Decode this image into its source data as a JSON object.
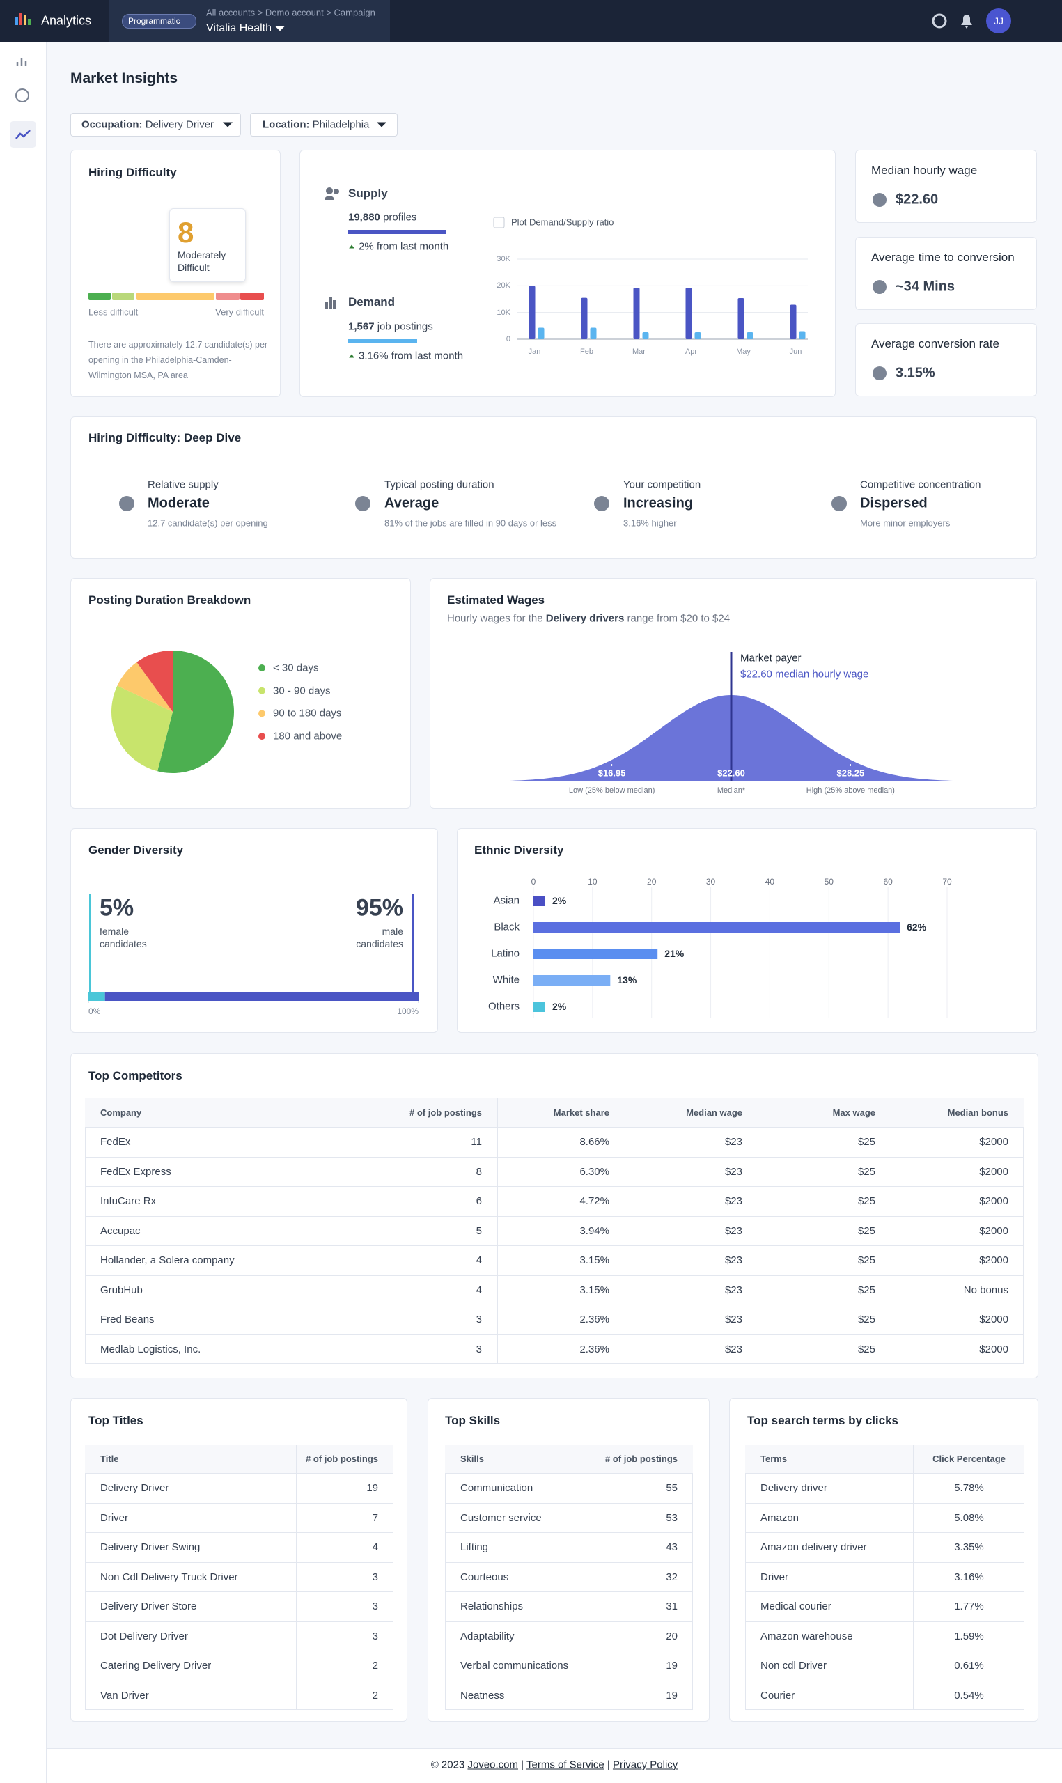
{
  "nav": {
    "brand": "Analytics",
    "badge": "Programmatic",
    "breadcrumb": "All accounts > Demo account > Campaign",
    "account": "Vitalia Health",
    "avatar": "JJ"
  },
  "page_title": "Market Insights",
  "filters": [
    {
      "label": "Occupation:",
      "value": "Delivery Driver"
    },
    {
      "label": "Location:",
      "value": "Philadelphia"
    }
  ],
  "hiring_difficulty": {
    "title": "Hiring Difficulty",
    "score": 8,
    "score_label": "Moderately Difficult",
    "scale_min_label": "Less difficult",
    "scale_max_label": "Very difficult",
    "note": "There are approximately 12.7 candidate(s) per opening in the Philadelphia-Camden-Wilmington MSA, PA area"
  },
  "supply_demand": {
    "supply": {
      "title": "Supply",
      "value": "19,880",
      "unit": "profiles",
      "change": "2% from last month",
      "color": "#4a55c4"
    },
    "demand": {
      "title": "Demand",
      "value": "1,567",
      "unit": "job postings",
      "change": "3.16% from last month",
      "color": "#5ab4ef"
    },
    "checkbox_label": "Plot Demand/Supply ratio",
    "chart": {
      "type": "bar",
      "categories": [
        "Jan",
        "Feb",
        "Mar",
        "Apr",
        "May",
        "Jun"
      ],
      "series": [
        {
          "color": "#4a55c4",
          "values": [
            20000,
            15500,
            19300,
            19300,
            15400,
            12900
          ]
        },
        {
          "color": "#5ab4ef",
          "values": [
            4300,
            4300,
            2600,
            2600,
            2600,
            3000
          ]
        }
      ],
      "ylim": [
        0,
        30000
      ],
      "yticks": [
        0,
        {
          "value": 10000,
          "label": "10K"
        },
        {
          "value": 20000,
          "label": "20K"
        },
        {
          "value": 30000,
          "label": "30K"
        }
      ]
    }
  },
  "metrics": [
    {
      "title": "Median hourly wage",
      "value": "$22.60"
    },
    {
      "title": "Average time to conversion",
      "value": "~34 Mins"
    },
    {
      "title": "Average conversion rate",
      "value": "3.15%"
    }
  ],
  "deep_dive": {
    "title": "Hiring Difficulty: Deep Dive",
    "items": [
      {
        "label": "Relative supply",
        "value": "Moderate",
        "note": "12.7 candidate(s) per opening"
      },
      {
        "label": "Typical posting duration",
        "value": "Average",
        "note": "81% of the jobs are filled in 90 days or less"
      },
      {
        "label": "Your competition",
        "value": "Increasing",
        "note": "3.16% higher"
      },
      {
        "label": "Competitive concentration",
        "value": "Dispersed",
        "note": "More minor employers"
      }
    ]
  },
  "posting_duration": {
    "title": "Posting Duration Breakdown",
    "chart": {
      "type": "pie",
      "categories": [
        "< 30 days",
        "30 - 90 days",
        "90 to 180 days",
        "180 and above"
      ],
      "values": [
        54,
        28,
        8,
        10
      ],
      "colors": [
        "#4caf50",
        "#c8e46c",
        "#fdc96b",
        "#e84e4e"
      ]
    }
  },
  "estimated_wages": {
    "title": "Estimated Wages",
    "subtitle": [
      "Hourly wages for the ",
      "Delivery drivers",
      " range from $20 to $24"
    ],
    "marker_title": "Market payer",
    "marker_label": "$22.60 median hourly wage",
    "chart": {
      "type": "area",
      "color": "#6b74d9",
      "xlim": [
        9.15,
        36.05
      ],
      "xticks": [
        {
          "value": 16.95,
          "label": "$16.95"
        },
        {
          "value": 22.6,
          "label": "$22.60"
        },
        {
          "value": 28.25,
          "label": "$28.25"
        }
      ],
      "tick_captions": [
        "Low (25% below median)",
        "Median*",
        "High (25% above median)"
      ]
    }
  },
  "gender": {
    "title": "Gender Diversity",
    "chart": {
      "type": "stackedbar",
      "categories": [
        "female candidates",
        "male candidates"
      ],
      "values": [
        5,
        95
      ],
      "value_labels": [
        "5%",
        "95%"
      ],
      "colors": [
        "#4ac6d8",
        "#4a55c4"
      ],
      "xlim": [
        0,
        100
      ],
      "xticks": [
        {
          "value": 0,
          "label": "0%"
        },
        {
          "value": 100,
          "label": "100%"
        }
      ]
    }
  },
  "ethnic": {
    "title": "Ethnic Diversity",
    "chart": {
      "type": "barh",
      "categories": [
        "Asian",
        "Black",
        "Latino",
        "White",
        "Others"
      ],
      "values": [
        2,
        62,
        21,
        13,
        2
      ],
      "value_labels": [
        "2%",
        "62%",
        "21%",
        "13%",
        "2%"
      ],
      "colors": [
        "#4a4fc4",
        "#5a6fe0",
        "#5a8ef0",
        "#7aaef5",
        "#4cc4dc"
      ],
      "xlim": [
        0,
        70
      ],
      "xticks": [
        0,
        10,
        20,
        30,
        40,
        50,
        60,
        70
      ],
      "grid": true
    }
  },
  "competitors": {
    "title": "Top Competitors",
    "columns": [
      "Company",
      "# of job postings",
      "Market share",
      "Median wage",
      "Max wage",
      "Median bonus"
    ],
    "rows": [
      [
        "FedEx",
        "11",
        "8.66%",
        "$23",
        "$25",
        "$2000"
      ],
      [
        "FedEx Express",
        "8",
        "6.30%",
        "$23",
        "$25",
        "$2000"
      ],
      [
        "InfuCare Rx",
        "6",
        "4.72%",
        "$23",
        "$25",
        "$2000"
      ],
      [
        "Accupac",
        "5",
        "3.94%",
        "$23",
        "$25",
        "$2000"
      ],
      [
        "Hollander, a Solera company",
        "4",
        "3.15%",
        "$23",
        "$25",
        "$2000"
      ],
      [
        "GrubHub",
        "4",
        "3.15%",
        "$23",
        "$25",
        "No bonus"
      ],
      [
        "Fred Beans",
        "3",
        "2.36%",
        "$23",
        "$25",
        "$2000"
      ],
      [
        "Medlab Logistics, Inc.",
        "3",
        "2.36%",
        "$23",
        "$25",
        "$2000"
      ]
    ]
  },
  "top_titles": {
    "title": "Top Titles",
    "columns": [
      "Title",
      "# of job postings"
    ],
    "rows": [
      [
        "Delivery Driver",
        "19"
      ],
      [
        "Driver",
        "7"
      ],
      [
        "Delivery Driver Swing",
        "4"
      ],
      [
        "Non Cdl Delivery Truck Driver",
        "3"
      ],
      [
        "Delivery Driver Store",
        "3"
      ],
      [
        "Dot Delivery Driver",
        "3"
      ],
      [
        "Catering Delivery Driver",
        "2"
      ],
      [
        "Van Driver",
        "2"
      ]
    ]
  },
  "top_skills": {
    "title": "Top Skills",
    "columns": [
      "Skills",
      "# of job postings"
    ],
    "rows": [
      [
        "Communication",
        "55"
      ],
      [
        "Customer service",
        "53"
      ],
      [
        "Lifting",
        "43"
      ],
      [
        "Courteous",
        "32"
      ],
      [
        "Relationships",
        "31"
      ],
      [
        "Adaptability",
        "20"
      ],
      [
        "Verbal communications",
        "19"
      ],
      [
        "Neatness",
        "19"
      ]
    ]
  },
  "top_search_terms": {
    "title": "Top search terms by clicks",
    "columns": [
      "Terms",
      "Click Percentage"
    ],
    "rows": [
      [
        "Delivery driver",
        "5.78%"
      ],
      [
        "Amazon",
        "5.08%"
      ],
      [
        "Amazon delivery driver",
        "3.35%"
      ],
      [
        "Driver",
        "3.16%"
      ],
      [
        "Medical courier",
        "1.77%"
      ],
      [
        "Amazon warehouse",
        "1.59%"
      ],
      [
        "Non cdl Driver",
        "0.61%"
      ],
      [
        "Courier",
        "0.54%"
      ]
    ]
  },
  "footer": {
    "copyright": "© 2023",
    "separator": "|",
    "links": [
      "Joveo.com",
      "Terms of Service",
      "Privacy Policy"
    ]
  }
}
